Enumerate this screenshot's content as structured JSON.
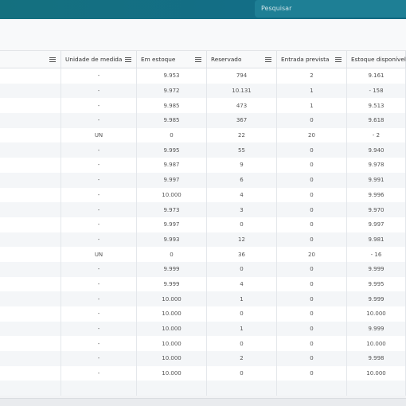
{
  "search": {
    "placeholder": "Pesquisar"
  },
  "table": {
    "headers": [
      "",
      "Unidade de medida",
      "Em estoque",
      "Reservado",
      "Entrada prevista",
      "Estoque disponível"
    ],
    "rows": [
      [
        "-",
        "9.953",
        "794",
        "2",
        "9.161"
      ],
      [
        "-",
        "9.972",
        "10.131",
        "1",
        "- 158"
      ],
      [
        "-",
        "9.985",
        "473",
        "1",
        "9.513"
      ],
      [
        "-",
        "9.985",
        "367",
        "0",
        "9.618"
      ],
      [
        "UN",
        "0",
        "22",
        "20",
        "- 2"
      ],
      [
        "-",
        "9.995",
        "55",
        "0",
        "9.940"
      ],
      [
        "-",
        "9.987",
        "9",
        "0",
        "9.978"
      ],
      [
        "-",
        "9.997",
        "6",
        "0",
        "9.991"
      ],
      [
        "-",
        "10.000",
        "4",
        "0",
        "9.996"
      ],
      [
        "-",
        "9.973",
        "3",
        "0",
        "9.970"
      ],
      [
        "-",
        "9.997",
        "0",
        "0",
        "9.997"
      ],
      [
        "-",
        "9.993",
        "12",
        "0",
        "9.981"
      ],
      [
        "UN",
        "0",
        "36",
        "20",
        "- 16"
      ],
      [
        "-",
        "9.999",
        "0",
        "0",
        "9.999"
      ],
      [
        "-",
        "9.999",
        "4",
        "0",
        "9.995"
      ],
      [
        "-",
        "10.000",
        "1",
        "0",
        "9.999"
      ],
      [
        "-",
        "10.000",
        "0",
        "0",
        "10.000"
      ],
      [
        "-",
        "10.000",
        "1",
        "0",
        "9.999"
      ],
      [
        "-",
        "10.000",
        "0",
        "0",
        "10.000"
      ],
      [
        "-",
        "10.000",
        "2",
        "0",
        "9.998"
      ],
      [
        "-",
        "10.000",
        "0",
        "0",
        "10.000"
      ],
      [
        "",
        "",
        "",
        "",
        ""
      ]
    ]
  }
}
